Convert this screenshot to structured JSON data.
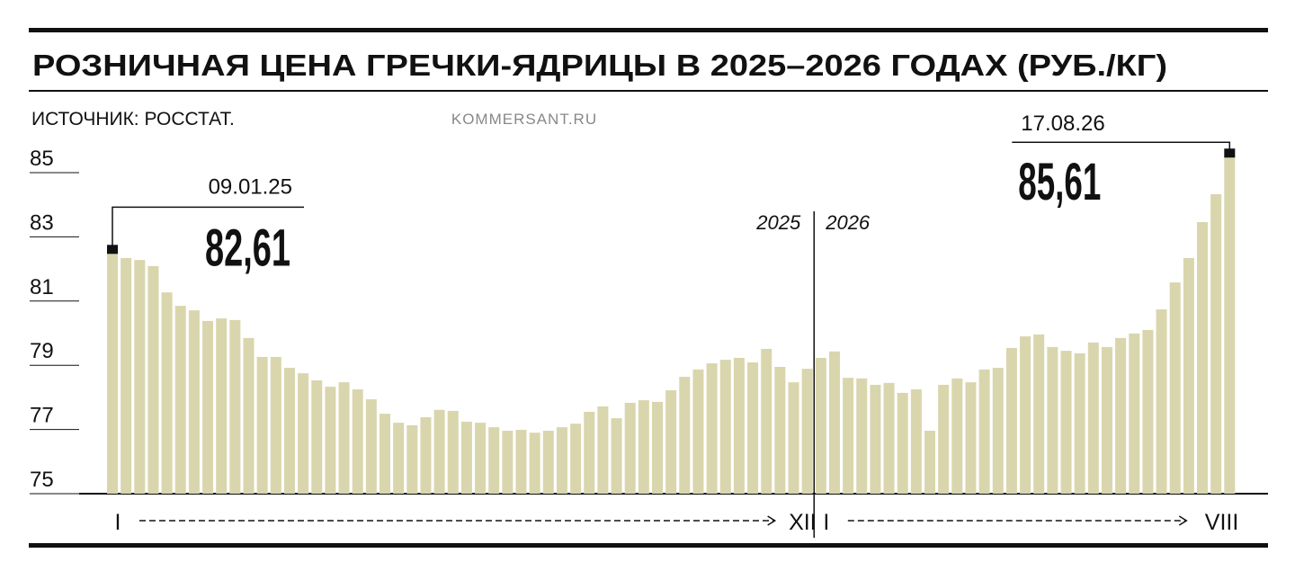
{
  "chart_data": {
    "type": "bar",
    "title": "РОЗНИЧНАЯ ЦЕНА ГРЕЧКИ-ЯДРИЦЫ В 2025–2026 ГОДАХ (РУБ./КГ)",
    "source": "ИСТОЧНИК: РОССТАТ.",
    "credit": "KOMMERSANT.RU",
    "ylim": [
      75,
      86
    ],
    "yticks": [
      75,
      77,
      79,
      81,
      83,
      85
    ],
    "color": "#d9d6ad",
    "series": [
      {
        "name": "2025",
        "start_label": "I",
        "end_label": "XII",
        "values": [
          82.61,
          82.34,
          82.28,
          82.09,
          81.27,
          80.85,
          80.71,
          80.38,
          80.46,
          80.41,
          79.85,
          79.26,
          79.26,
          78.92,
          78.75,
          78.53,
          78.33,
          78.47,
          78.25,
          77.94,
          77.49,
          77.21,
          77.13,
          77.38,
          77.61,
          77.58,
          77.24,
          77.21,
          77.07,
          76.96,
          76.99,
          76.9,
          76.96,
          77.07,
          77.18,
          77.55,
          77.72,
          77.35,
          77.83,
          77.91,
          77.86,
          78.22,
          78.64,
          78.87,
          79.06,
          79.17,
          79.23,
          79.09,
          79.51,
          78.95,
          78.47,
          78.89
        ],
        "value_labels": [
          "82,61",
          null,
          null,
          null,
          null,
          null,
          null,
          null,
          null,
          null,
          null,
          null,
          null,
          null,
          null,
          null,
          null,
          null,
          null,
          null,
          null,
          null,
          null,
          null,
          null,
          null,
          null,
          null,
          null,
          null,
          null,
          null,
          null,
          null,
          null,
          null,
          null,
          null,
          null,
          null,
          null,
          null,
          null,
          null,
          null,
          null,
          null,
          null,
          null,
          null,
          null,
          null
        ],
        "categories": [
          "09.01.25",
          null,
          null,
          null,
          null,
          null,
          null,
          null,
          null,
          null,
          null,
          null,
          null,
          null,
          null,
          null,
          null,
          null,
          null,
          null,
          null,
          null,
          null,
          null,
          null,
          null,
          null,
          null,
          null,
          null,
          null,
          null,
          null,
          null,
          null,
          null,
          null,
          null,
          null,
          null,
          null,
          null,
          null,
          null,
          null,
          null,
          null,
          null,
          null,
          null,
          null,
          null
        ]
      },
      {
        "name": "2026",
        "start_label": "I",
        "end_label": "VIII",
        "values": [
          79.23,
          79.43,
          78.61,
          78.59,
          78.39,
          78.45,
          78.14,
          78.25,
          76.96,
          78.39,
          78.59,
          78.47,
          78.87,
          78.92,
          79.54,
          79.9,
          79.96,
          79.57,
          79.45,
          79.37,
          79.71,
          79.57,
          79.85,
          79.99,
          80.1,
          80.74,
          81.58,
          82.34,
          83.46,
          84.33,
          85.61
        ],
        "value_labels": [
          null,
          null,
          null,
          null,
          null,
          null,
          null,
          null,
          null,
          null,
          null,
          null,
          null,
          null,
          null,
          null,
          null,
          null,
          null,
          null,
          null,
          null,
          null,
          null,
          null,
          null,
          null,
          null,
          null,
          null,
          "85,61"
        ],
        "categories": [
          null,
          null,
          null,
          null,
          null,
          null,
          null,
          null,
          null,
          null,
          null,
          null,
          null,
          null,
          null,
          null,
          null,
          null,
          null,
          null,
          null,
          null,
          null,
          null,
          null,
          null,
          null,
          null,
          null,
          null,
          "17.08.26"
        ]
      }
    ]
  }
}
